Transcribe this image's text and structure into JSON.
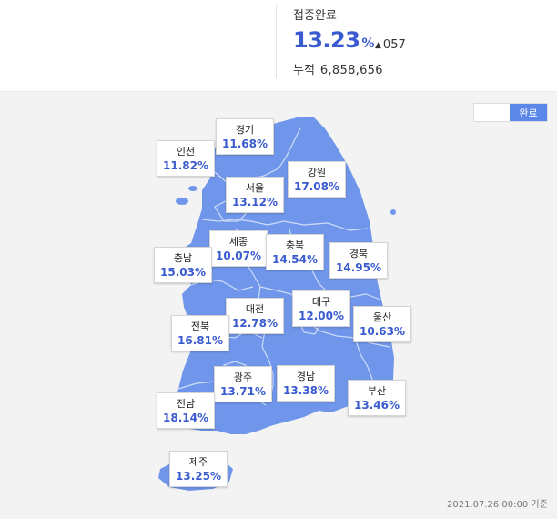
{
  "summary": {
    "label": "접종완료",
    "rate": "13.23",
    "percent_sign": "%",
    "change_arrow": "▲",
    "change_value": "057",
    "cumulative_label": "누적",
    "cumulative_value": "6,858,656"
  },
  "toggle": {
    "active_label": "완료"
  },
  "colors": {
    "accent": "#3a5bd0",
    "land": "#7096ec",
    "border_line": "#cfdcf8",
    "background": "#f3f3f4"
  },
  "regions": [
    {
      "id": "gyeonggi",
      "name": "경기",
      "rate": "11.68%"
    },
    {
      "id": "incheon",
      "name": "인천",
      "rate": "11.82%"
    },
    {
      "id": "seoul",
      "name": "서울",
      "rate": "13.12%"
    },
    {
      "id": "gangwon",
      "name": "강원",
      "rate": "17.08%"
    },
    {
      "id": "sejong",
      "name": "세종",
      "rate": "10.07%"
    },
    {
      "id": "chungbuk",
      "name": "충북",
      "rate": "14.54%"
    },
    {
      "id": "chungnam",
      "name": "충남",
      "rate": "15.03%"
    },
    {
      "id": "gyeongbuk",
      "name": "경북",
      "rate": "14.95%"
    },
    {
      "id": "daejeon",
      "name": "대전",
      "rate": "12.78%"
    },
    {
      "id": "daegu",
      "name": "대구",
      "rate": "12.00%"
    },
    {
      "id": "jeonbuk",
      "name": "전북",
      "rate": "16.81%"
    },
    {
      "id": "ulsan",
      "name": "울산",
      "rate": "10.63%"
    },
    {
      "id": "gwangju",
      "name": "광주",
      "rate": "13.71%"
    },
    {
      "id": "gyeongnam",
      "name": "경남",
      "rate": "13.38%"
    },
    {
      "id": "busan",
      "name": "부산",
      "rate": "13.46%"
    },
    {
      "id": "jeonnam",
      "name": "전남",
      "rate": "18.14%"
    },
    {
      "id": "jeju",
      "name": "제주",
      "rate": "13.25%"
    }
  ],
  "footnote": "2021.07.26 00:00 기준"
}
